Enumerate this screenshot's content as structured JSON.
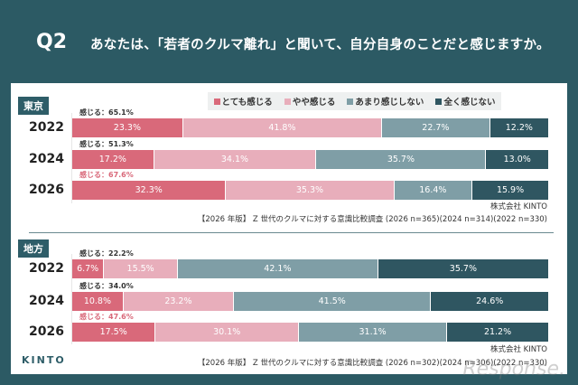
{
  "header": {
    "q": "Q2",
    "title": "あなたは、「若者のクルマ離れ」と聞いて、自分自身のことだと感じますか。"
  },
  "logo": "KINTO",
  "watermark": "Response.",
  "chart_data": {
    "type": "bar",
    "orientation": "horizontal-stacked-100",
    "legend": [
      "とても感じる",
      "やや感じる",
      "あまり感じしない",
      "全く感じない"
    ],
    "colors": [
      "#d9697a",
      "#e8aebb",
      "#7f9ea6",
      "#2f5661"
    ],
    "legend_placement": "top",
    "panels": [
      {
        "region": "東京",
        "company": "株式会社 KINTO",
        "source": "【2026 年版】 Z 世代のクルマに対する意識比較調査 (2026 n=365)(2024 n=314)(2022 n=330)",
        "rows": [
          {
            "year": "2022",
            "summary": "感じる：65.1%",
            "values": [
              23.3,
              41.8,
              22.7,
              12.2
            ]
          },
          {
            "year": "2024",
            "summary": "感じる：51.3%",
            "values": [
              17.2,
              34.1,
              35.7,
              13.0
            ]
          },
          {
            "year": "2026",
            "summary": "感じる：67.6%",
            "values": [
              32.3,
              35.3,
              16.4,
              15.9
            ]
          }
        ]
      },
      {
        "region": "地方",
        "company": "株式会社 KINTO",
        "source": "【2026 年版】 Z 世代のクルマに対する意識比較調査 (2026 n=302)(2024 n=306)(2022 n=330)",
        "rows": [
          {
            "year": "2022",
            "summary": "感じる：22.2%",
            "values": [
              6.7,
              15.5,
              42.1,
              35.7
            ]
          },
          {
            "year": "2024",
            "summary": "感じる：34.0%",
            "values": [
              10.8,
              23.2,
              41.5,
              24.6
            ]
          },
          {
            "year": "2026",
            "summary": "感じる：47.6%",
            "values": [
              17.5,
              30.1,
              31.1,
              21.2
            ]
          }
        ]
      }
    ]
  }
}
